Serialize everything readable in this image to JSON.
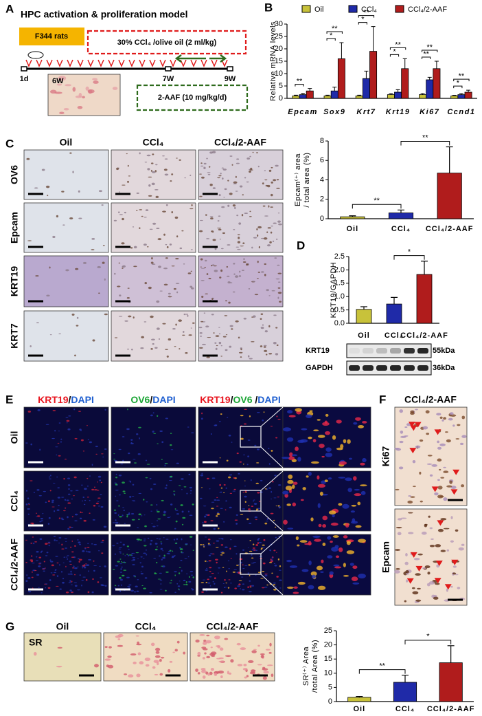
{
  "panels": {
    "a": {
      "label": "A",
      "title": "HPC activation & proliferation model",
      "animal": "F344 rats",
      "treatment": "30% CCl₄ /olive oil (2 ml/kg)",
      "inset": "6W",
      "timepoints": [
        "1d",
        "7W",
        "9W"
      ],
      "drug": "2-AAF (10 mg/kg/d)"
    },
    "b": {
      "label": "B"
    },
    "c": {
      "label": "C",
      "columns": [
        "Oil",
        "CCl₄",
        "CCl₄/2-AAF"
      ],
      "rows": [
        "OV6",
        "Epcam",
        "KRT19",
        "KRT7"
      ]
    },
    "d": {
      "label": "D",
      "blots": [
        "KRT19",
        "GAPDH"
      ],
      "sizes": [
        "55kDa",
        "36kDa"
      ]
    },
    "e": {
      "label": "E",
      "columns": [
        [
          {
            "text": "KRT19",
            "color": "#e8141e"
          },
          {
            "text": "/",
            "color": "#000000"
          },
          {
            "text": "DAPI",
            "color": "#1f5fd0"
          }
        ],
        [
          {
            "text": "OV6",
            "color": "#1aa534"
          },
          {
            "text": "/",
            "color": "#000000"
          },
          {
            "text": "DAPI",
            "color": "#1f5fd0"
          }
        ],
        [
          {
            "text": "KRT19",
            "color": "#e8141e"
          },
          {
            "text": "/",
            "color": "#000000"
          },
          {
            "text": "OV6",
            "color": "#1aa534"
          },
          {
            "text": " /",
            "color": "#000000"
          },
          {
            "text": "DAPI",
            "color": "#1f5fd0"
          }
        ]
      ],
      "rows": [
        "Oil",
        "CCl₄",
        "CCl₄/2-AAF"
      ]
    },
    "f": {
      "label": "F",
      "title": "CCl₄/2-AAF",
      "rows": [
        "Ki67",
        "Epcam"
      ]
    },
    "g": {
      "label": "G",
      "columns": [
        "Oil",
        "CCl₄",
        "CCl₄/2-AAF"
      ],
      "stain": "SR"
    }
  },
  "chart_data": [
    {
      "type": "grouped-bar",
      "y_label": [
        "Relative mRNA levels"
      ],
      "categories": [
        "Epcam",
        "Sox9",
        "Krt7",
        "Krt19",
        "Ki67",
        "Ccnd1"
      ],
      "series": [
        {
          "name": "Oil",
          "color": "#c8c23a",
          "values": [
            1,
            1,
            1,
            1.5,
            1.5,
            1
          ],
          "errors": [
            0.3,
            0.3,
            0.3,
            0.4,
            0.4,
            0.2
          ]
        },
        {
          "name": "CCl₄",
          "color": "#1f2aa8",
          "values": [
            1.5,
            3,
            8,
            2.5,
            7.5,
            1.5
          ],
          "errors": [
            0.5,
            1.5,
            3,
            1,
            1,
            0.4
          ]
        },
        {
          "name": "CCl₄/2-AAF",
          "color": "#b01c1c",
          "values": [
            3,
            16,
            19,
            12,
            12,
            2.5
          ],
          "errors": [
            1,
            6.5,
            10,
            4,
            3,
            0.8
          ]
        }
      ],
      "ylim": [
        0,
        30
      ],
      "yticks": [
        0,
        5,
        10,
        15,
        20,
        25,
        30
      ],
      "significance": [
        [
          "**"
        ],
        [
          "*",
          "**"
        ],
        [
          "*",
          "**"
        ],
        [
          "*",
          "**"
        ],
        [
          "**",
          "**"
        ],
        [
          "*",
          "**"
        ]
      ]
    },
    {
      "type": "bar",
      "y_label": [
        "Epcam⁽⁺⁾ area",
        "/ total area (%)"
      ],
      "categories": [
        "Oil",
        "CCl₄",
        "CCl₄/2-AAF"
      ],
      "values": [
        0.2,
        0.6,
        4.7
      ],
      "errors": [
        0.1,
        0.3,
        2.7
      ],
      "colors": [
        "#c8c23a",
        "#1f2aa8",
        "#b01c1c"
      ],
      "ylim": [
        0,
        8
      ],
      "yticks": [
        0,
        2,
        4,
        6,
        8
      ],
      "significance": [
        "**",
        "**"
      ]
    },
    {
      "type": "bar",
      "y_label": [
        "KRT19/GAPDH"
      ],
      "categories": [
        "Oil",
        "CCl₄",
        "CCl₄/2-AAF"
      ],
      "values": [
        0.52,
        0.72,
        1.83
      ],
      "errors": [
        0.1,
        0.25,
        0.5
      ],
      "colors": [
        "#c8c23a",
        "#1f2aa8",
        "#b01c1c"
      ],
      "ylim": [
        0,
        2.5
      ],
      "yticks": [
        {
          "value": 0,
          "label": "0.0"
        },
        0.5,
        {
          "value": 1,
          "label": "1.0"
        },
        1.5,
        {
          "value": 2,
          "label": "2.0"
        },
        2.5
      ],
      "significance": [
        "*"
      ]
    },
    {
      "type": "bar",
      "y_label": [
        "SR⁽⁺⁾ Area",
        "/total Area (%)"
      ],
      "categories": [
        "Oil",
        "CCl₄",
        "CCl₄/2-AAF"
      ],
      "values": [
        1.5,
        6.8,
        13.7
      ],
      "errors": [
        0.3,
        2.5,
        6
      ],
      "colors": [
        "#c8c23a",
        "#1f2aa8",
        "#b01c1c"
      ],
      "ylim": [
        0,
        25
      ],
      "yticks": [
        0,
        5,
        10,
        15,
        20,
        25
      ],
      "significance": [
        "**",
        "*"
      ]
    }
  ]
}
